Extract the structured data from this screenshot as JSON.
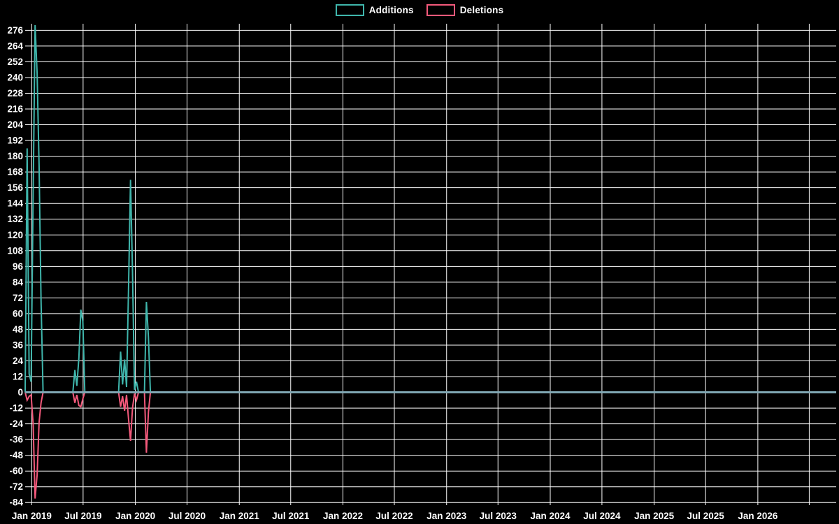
{
  "page": {
    "background": "#000000",
    "text_color": "#ffffff"
  },
  "chart_data": {
    "type": "line",
    "title": "",
    "xlabel": "",
    "ylabel": "",
    "legend_position": "top-center",
    "grid": true,
    "colors": {
      "background": "#000000",
      "grid": "#ffffff",
      "zero_line": "#7fa6b2",
      "tick_text": "#ffffff",
      "additions": "#3fb6ac",
      "deletions": "#f4597b"
    },
    "ylim": [
      -86,
      281
    ],
    "x_domain": [
      "2018-12-09",
      "2026-10-04"
    ],
    "yticks": [
      276,
      264,
      252,
      240,
      228,
      216,
      204,
      192,
      180,
      168,
      156,
      144,
      132,
      120,
      108,
      96,
      84,
      72,
      60,
      48,
      36,
      24,
      12,
      0,
      -12,
      -24,
      -36,
      -48,
      -60,
      -72,
      -84
    ],
    "xticks": [
      {
        "date": "2019-01-01",
        "label": "Jan 2019"
      },
      {
        "date": "2019-07-01",
        "label": "Jul 2019"
      },
      {
        "date": "2020-01-01",
        "label": "Jan 2020"
      },
      {
        "date": "2020-07-01",
        "label": "Jul 2020"
      },
      {
        "date": "2021-01-01",
        "label": "Jan 2021"
      },
      {
        "date": "2021-07-01",
        "label": "Jul 2021"
      },
      {
        "date": "2022-01-01",
        "label": "Jan 2022"
      },
      {
        "date": "2022-07-01",
        "label": "Jul 2022"
      },
      {
        "date": "2023-01-01",
        "label": "Jan 2023"
      },
      {
        "date": "2023-07-01",
        "label": "Jul 2023"
      },
      {
        "date": "2024-01-01",
        "label": "Jan 2024"
      },
      {
        "date": "2024-07-01",
        "label": "Jul 2024"
      },
      {
        "date": "2025-01-01",
        "label": "Jan 2025"
      },
      {
        "date": "2025-07-01",
        "label": "Jul 2025"
      },
      {
        "date": "2026-01-01",
        "label": "Jan 2026"
      },
      {
        "date": "2026-07-01",
        "label": ""
      }
    ],
    "series": [
      {
        "name": "Additions",
        "color": "#3fb6ac",
        "value_index": 1
      },
      {
        "name": "Deletions",
        "color": "#f4597b",
        "value_index": 2
      }
    ],
    "points_note": "each point is [week_date, additions, deletions]; line is flat 0 between listed zero points",
    "points": [
      [
        "2018-12-09",
        0,
        0
      ],
      [
        "2018-12-16",
        186,
        -6
      ],
      [
        "2018-12-23",
        14,
        -3
      ],
      [
        "2018-12-30",
        8,
        -2
      ],
      [
        "2019-01-06",
        150,
        -24
      ],
      [
        "2019-01-13",
        280,
        -81
      ],
      [
        "2019-01-20",
        243,
        -63
      ],
      [
        "2019-01-27",
        173,
        -23
      ],
      [
        "2019-02-03",
        70,
        -8
      ],
      [
        "2019-02-10",
        0,
        0
      ],
      [
        "2019-05-26",
        0,
        0
      ],
      [
        "2019-06-02",
        17,
        -8
      ],
      [
        "2019-06-09",
        5,
        -2
      ],
      [
        "2019-06-16",
        26,
        -10
      ],
      [
        "2019-06-23",
        63,
        -11
      ],
      [
        "2019-06-30",
        54,
        -5
      ],
      [
        "2019-07-07",
        0,
        0
      ],
      [
        "2019-11-03",
        0,
        0
      ],
      [
        "2019-11-10",
        31,
        -11
      ],
      [
        "2019-11-17",
        6,
        -3
      ],
      [
        "2019-11-24",
        25,
        -14
      ],
      [
        "2019-12-01",
        4,
        -2
      ],
      [
        "2019-12-08",
        78,
        -20
      ],
      [
        "2019-12-15",
        162,
        -37
      ],
      [
        "2019-12-22",
        92,
        -12
      ],
      [
        "2019-12-29",
        2,
        -1
      ],
      [
        "2020-01-05",
        8,
        -6
      ],
      [
        "2020-01-12",
        0,
        0
      ],
      [
        "2020-02-02",
        0,
        0
      ],
      [
        "2020-02-09",
        69,
        -46
      ],
      [
        "2020-02-16",
        42,
        -15
      ],
      [
        "2020-02-23",
        0,
        0
      ],
      [
        "2026-10-04",
        0,
        0
      ]
    ]
  }
}
